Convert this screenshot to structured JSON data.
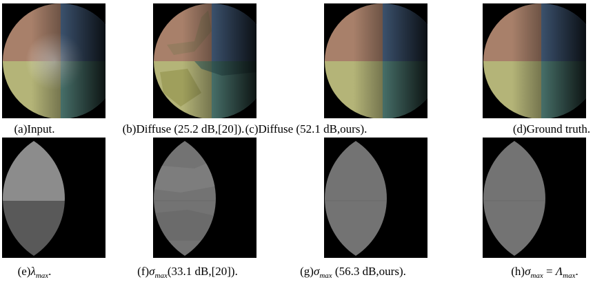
{
  "figure": {
    "panels": [
      {
        "caption": [
          {
            "text": "(a)Input."
          }
        ]
      },
      {
        "caption": [
          {
            "text": "(b)Diffuse (25.2 dB,[20])."
          }
        ]
      },
      {
        "caption": [
          {
            "text": "(c)Diffuse (52.1 dB,ours)."
          }
        ]
      },
      {
        "caption": [
          {
            "text": "(d)Ground truth."
          }
        ]
      },
      {
        "caption": [
          {
            "text": "(e)"
          },
          {
            "text": "λ",
            "sub": "max"
          },
          {
            "text": "."
          }
        ]
      },
      {
        "caption": [
          {
            "text": "(f)"
          },
          {
            "text": "σ",
            "sub": "max"
          },
          {
            "text": "(33.1 dB,[20])."
          }
        ]
      },
      {
        "caption": [
          {
            "text": "(g)"
          },
          {
            "text": "σ",
            "sub": "max"
          },
          {
            "text": " (56.3 dB,ours)."
          }
        ]
      },
      {
        "caption": [
          {
            "text": "(h)"
          },
          {
            "text": "σ",
            "sub": "max"
          },
          {
            "text": " = "
          },
          {
            "text": "Λ",
            "sub": "max"
          },
          {
            "text": "."
          }
        ]
      }
    ]
  }
}
